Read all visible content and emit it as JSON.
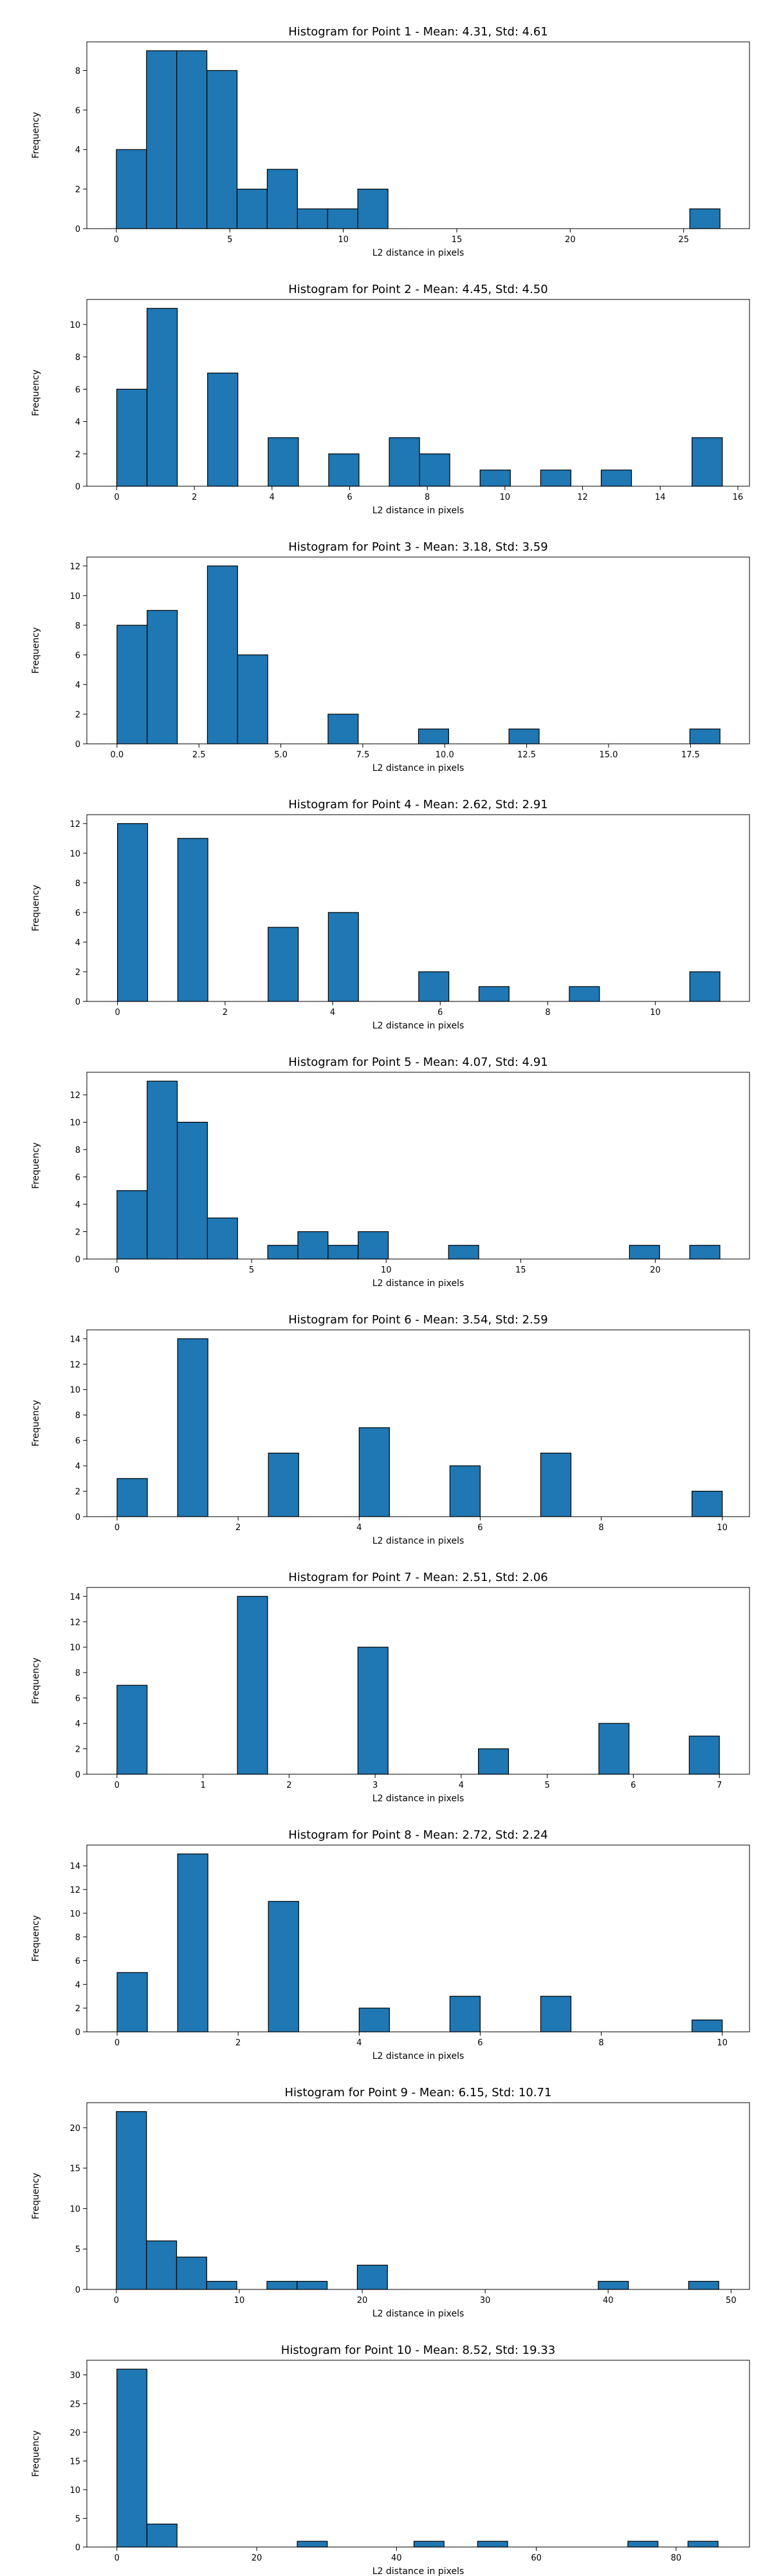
{
  "chart_data": [
    {
      "type": "bar",
      "title": "Histogram for Point 1 - Mean: 4.31, Std: 4.61",
      "xlabel": "L2 distance in pixels",
      "ylabel": "Frequency",
      "xlim": [
        -1.3,
        27.9
      ],
      "ylim": [
        0,
        9.45
      ],
      "xticks": [
        0,
        5,
        10,
        15,
        20,
        25
      ],
      "yticks": [
        0,
        2,
        4,
        6,
        8
      ],
      "bin_width": 1.33,
      "bins": [
        {
          "x": 0,
          "count": 4
        },
        {
          "x": 1.33,
          "count": 9
        },
        {
          "x": 2.66,
          "count": 9
        },
        {
          "x": 3.99,
          "count": 8
        },
        {
          "x": 5.32,
          "count": 2
        },
        {
          "x": 6.65,
          "count": 3
        },
        {
          "x": 7.98,
          "count": 1
        },
        {
          "x": 9.31,
          "count": 1
        },
        {
          "x": 10.64,
          "count": 2
        },
        {
          "x": 25.27,
          "count": 1
        }
      ]
    },
    {
      "type": "bar",
      "title": "Histogram for Point 2 - Mean: 4.45, Std: 4.50",
      "xlabel": "L2 distance in pixels",
      "ylabel": "Frequency",
      "xlim": [
        -0.77,
        16.3
      ],
      "ylim": [
        0,
        11.55
      ],
      "xticks": [
        0,
        2,
        4,
        6,
        8,
        10,
        12,
        14,
        16
      ],
      "xtick_labels": [
        "0",
        "2",
        "4",
        "6",
        "8",
        "10",
        "12",
        "14",
        "16"
      ],
      "yticks": [
        0,
        2,
        4,
        6,
        8,
        10
      ],
      "bin_width": 0.78,
      "bins": [
        {
          "x": 0,
          "count": 6
        },
        {
          "x": 0.78,
          "count": 11
        },
        {
          "x": 2.34,
          "count": 7
        },
        {
          "x": 3.9,
          "count": 3
        },
        {
          "x": 5.46,
          "count": 2
        },
        {
          "x": 7.02,
          "count": 3
        },
        {
          "x": 7.8,
          "count": 2
        },
        {
          "x": 9.36,
          "count": 1
        },
        {
          "x": 10.92,
          "count": 1
        },
        {
          "x": 12.48,
          "count": 1
        },
        {
          "x": 14.82,
          "count": 3
        }
      ]
    },
    {
      "type": "bar",
      "title": "Histogram for Point 3 - Mean: 3.18, Std: 3.59",
      "xlabel": "L2 distance in pixels",
      "ylabel": "Frequency",
      "xlim": [
        -0.92,
        19.3
      ],
      "ylim": [
        0,
        12.6
      ],
      "xticks": [
        0,
        2.5,
        5,
        7.5,
        10,
        12.5,
        15,
        17.5
      ],
      "xtick_labels": [
        "0.0",
        "2.5",
        "5.0",
        "7.5",
        "10.0",
        "12.5",
        "15.0",
        "17.5"
      ],
      "yticks": [
        0,
        2,
        4,
        6,
        8,
        10,
        12
      ],
      "bin_width": 0.92,
      "bins": [
        {
          "x": 0,
          "count": 8
        },
        {
          "x": 0.92,
          "count": 9
        },
        {
          "x": 2.76,
          "count": 12
        },
        {
          "x": 3.68,
          "count": 6
        },
        {
          "x": 6.44,
          "count": 2
        },
        {
          "x": 9.2,
          "count": 1
        },
        {
          "x": 11.96,
          "count": 1
        },
        {
          "x": 17.48,
          "count": 1
        }
      ]
    },
    {
      "type": "bar",
      "title": "Histogram for Point 4 - Mean: 2.62, Std: 2.91",
      "xlabel": "L2 distance in pixels",
      "ylabel": "Frequency",
      "xlim": [
        -0.57,
        11.75
      ],
      "ylim": [
        0,
        12.6
      ],
      "xticks": [
        0,
        2,
        4,
        6,
        8,
        10
      ],
      "yticks": [
        0,
        2,
        4,
        6,
        8,
        10,
        12
      ],
      "bin_width": 0.56,
      "bins": [
        {
          "x": 0,
          "count": 12
        },
        {
          "x": 1.12,
          "count": 11
        },
        {
          "x": 2.8,
          "count": 5
        },
        {
          "x": 3.92,
          "count": 6
        },
        {
          "x": 5.6,
          "count": 2
        },
        {
          "x": 6.72,
          "count": 1
        },
        {
          "x": 8.4,
          "count": 1
        },
        {
          "x": 10.64,
          "count": 2
        }
      ]
    },
    {
      "type": "bar",
      "title": "Histogram for Point 5 - Mean: 4.07, Std: 4.91",
      "xlabel": "L2 distance in pixels",
      "ylabel": "Frequency",
      "xlim": [
        -1.12,
        23.5
      ],
      "ylim": [
        0,
        13.65
      ],
      "xticks": [
        0,
        5,
        10,
        15,
        20
      ],
      "yticks": [
        0,
        2,
        4,
        6,
        8,
        10,
        12
      ],
      "bin_width": 1.12,
      "bins": [
        {
          "x": 0,
          "count": 5
        },
        {
          "x": 1.12,
          "count": 13
        },
        {
          "x": 2.24,
          "count": 10
        },
        {
          "x": 3.36,
          "count": 3
        },
        {
          "x": 5.6,
          "count": 1
        },
        {
          "x": 6.72,
          "count": 2
        },
        {
          "x": 7.84,
          "count": 1
        },
        {
          "x": 8.96,
          "count": 2
        },
        {
          "x": 12.32,
          "count": 1
        },
        {
          "x": 19.04,
          "count": 1
        },
        {
          "x": 21.28,
          "count": 1
        }
      ]
    },
    {
      "type": "bar",
      "title": "Histogram for Point 6 - Mean: 3.54, Std: 2.59",
      "xlabel": "L2 distance in pixels",
      "ylabel": "Frequency",
      "xlim": [
        -0.5,
        10.45
      ],
      "ylim": [
        0,
        14.7
      ],
      "xticks": [
        0,
        2,
        4,
        6,
        8,
        10
      ],
      "yticks": [
        0,
        2,
        4,
        6,
        8,
        10,
        12,
        14
      ],
      "bin_width": 0.5,
      "bins": [
        {
          "x": 0,
          "count": 3
        },
        {
          "x": 1,
          "count": 14
        },
        {
          "x": 2.5,
          "count": 5
        },
        {
          "x": 4,
          "count": 7
        },
        {
          "x": 5.5,
          "count": 4
        },
        {
          "x": 7,
          "count": 5
        },
        {
          "x": 9.5,
          "count": 2
        }
      ]
    },
    {
      "type": "bar",
      "title": "Histogram for Point 7 - Mean: 2.51, Std: 2.06",
      "xlabel": "L2 distance in pixels",
      "ylabel": "Frequency",
      "xlim": [
        -0.35,
        7.35
      ],
      "ylim": [
        0,
        14.7
      ],
      "xticks": [
        0,
        1,
        2,
        3,
        4,
        5,
        6,
        7
      ],
      "yticks": [
        0,
        2,
        4,
        6,
        8,
        10,
        12,
        14
      ],
      "bin_width": 0.35,
      "bins": [
        {
          "x": 0,
          "count": 7
        },
        {
          "x": 1.4,
          "count": 14
        },
        {
          "x": 2.8,
          "count": 10
        },
        {
          "x": 4.2,
          "count": 2
        },
        {
          "x": 5.6,
          "count": 4
        },
        {
          "x": 6.65,
          "count": 3
        }
      ]
    },
    {
      "type": "bar",
      "title": "Histogram for Point 8 - Mean: 2.72, Std: 2.24",
      "xlabel": "L2 distance in pixels",
      "ylabel": "Frequency",
      "xlim": [
        -0.5,
        10.45
      ],
      "ylim": [
        0,
        15.75
      ],
      "xticks": [
        0,
        2,
        4,
        6,
        8,
        10
      ],
      "yticks": [
        0,
        2,
        4,
        6,
        8,
        10,
        12,
        14
      ],
      "bin_width": 0.5,
      "bins": [
        {
          "x": 0,
          "count": 5
        },
        {
          "x": 1,
          "count": 15
        },
        {
          "x": 2.5,
          "count": 11
        },
        {
          "x": 4,
          "count": 2
        },
        {
          "x": 5.5,
          "count": 3
        },
        {
          "x": 7,
          "count": 3
        },
        {
          "x": 9.5,
          "count": 1
        }
      ]
    },
    {
      "type": "bar",
      "title": "Histogram for Point 9 - Mean: 6.15, Std: 10.71",
      "xlabel": "L2 distance in pixels",
      "ylabel": "Frequency",
      "xlim": [
        -2.4,
        51.5
      ],
      "ylim": [
        0,
        23.1
      ],
      "xticks": [
        0,
        10,
        20,
        30,
        40,
        50
      ],
      "yticks": [
        0,
        5,
        10,
        15,
        20
      ],
      "bin_width": 2.45,
      "bins": [
        {
          "x": 0,
          "count": 22
        },
        {
          "x": 2.45,
          "count": 6
        },
        {
          "x": 4.9,
          "count": 4
        },
        {
          "x": 7.35,
          "count": 1
        },
        {
          "x": 12.25,
          "count": 1
        },
        {
          "x": 14.7,
          "count": 1
        },
        {
          "x": 19.6,
          "count": 3
        },
        {
          "x": 39.2,
          "count": 1
        },
        {
          "x": 46.55,
          "count": 1
        }
      ]
    },
    {
      "type": "bar",
      "title": "Histogram for Point 10 - Mean: 8.52, Std: 19.33",
      "xlabel": "L2 distance in pixels",
      "ylabel": "Frequency",
      "xlim": [
        -4.3,
        90.5
      ],
      "ylim": [
        0,
        32.55
      ],
      "xticks": [
        0,
        20,
        40,
        60,
        80
      ],
      "yticks": [
        0,
        5,
        10,
        15,
        20,
        25,
        30
      ],
      "bin_width": 4.3,
      "bins": [
        {
          "x": 0,
          "count": 31
        },
        {
          "x": 4.3,
          "count": 4
        },
        {
          "x": 25.8,
          "count": 1
        },
        {
          "x": 42.5,
          "count": 1
        },
        {
          "x": 51.6,
          "count": 1
        },
        {
          "x": 73.1,
          "count": 1
        },
        {
          "x": 81.7,
          "count": 1
        }
      ]
    }
  ]
}
